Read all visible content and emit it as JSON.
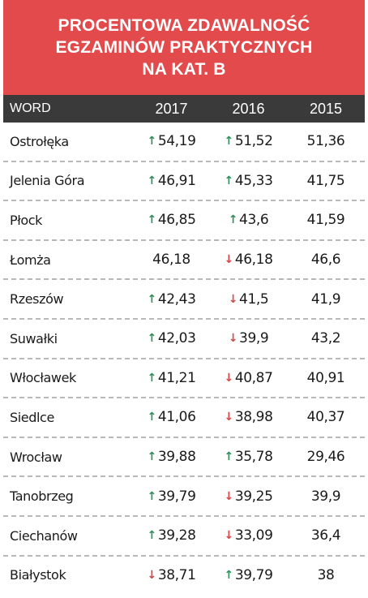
{
  "title": {
    "line1": "PROCENTOWA ZDAWALNOŚĆ",
    "line2": "EGZAMINÓW PRAKTYCZNYCH",
    "line3": "NA KAT. B"
  },
  "header": {
    "col_name": "WORD",
    "col_2017": "2017",
    "col_2016": "2016",
    "col_2015": "2015"
  },
  "colors": {
    "title_bg": "#e24a4b",
    "header_bg": "#3a3a3a",
    "up": "#2f8f5b",
    "down": "#d64545"
  },
  "rows": [
    {
      "name": "Ostrołęka",
      "v2017": "54,19",
      "t2017": "up",
      "v2016": "51,52",
      "t2016": "up",
      "v2015": "51,36"
    },
    {
      "name": "Jelenia Góra",
      "v2017": "46,91",
      "t2017": "up",
      "v2016": "45,33",
      "t2016": "up",
      "v2015": "41,75"
    },
    {
      "name": "Płock",
      "v2017": "46,85",
      "t2017": "up",
      "v2016": "43,6",
      "t2016": "up",
      "v2015": "41,59"
    },
    {
      "name": "Łomża",
      "v2017": "46,18",
      "t2017": "none",
      "v2016": "46,18",
      "t2016": "down",
      "v2015": "46,6"
    },
    {
      "name": "Rzeszów",
      "v2017": "42,43",
      "t2017": "up",
      "v2016": "41,5",
      "t2016": "down",
      "v2015": "41,9"
    },
    {
      "name": "Suwałki",
      "v2017": "42,03",
      "t2017": "up",
      "v2016": "39,9",
      "t2016": "down",
      "v2015": "43,2"
    },
    {
      "name": "Włocławek",
      "v2017": "41,21",
      "t2017": "up",
      "v2016": "40,87",
      "t2016": "down",
      "v2015": "40,91"
    },
    {
      "name": "Siedlce",
      "v2017": "41,06",
      "t2017": "up",
      "v2016": "38,98",
      "t2016": "down",
      "v2015": "40,37"
    },
    {
      "name": "Wrocław",
      "v2017": "39,88",
      "t2017": "up",
      "v2016": "35,78",
      "t2016": "up",
      "v2015": "29,46"
    },
    {
      "name": "Tanobrzeg",
      "v2017": "39,79",
      "t2017": "up",
      "v2016": "39,25",
      "t2016": "down",
      "v2015": "39,9"
    },
    {
      "name": "Ciechanów",
      "v2017": "39,28",
      "t2017": "up",
      "v2016": "33,09",
      "t2016": "down",
      "v2015": "36,4"
    },
    {
      "name": "Białystok",
      "v2017": "38,71",
      "t2017": "down",
      "v2016": "39,79",
      "t2016": "up",
      "v2015": "38"
    }
  ]
}
